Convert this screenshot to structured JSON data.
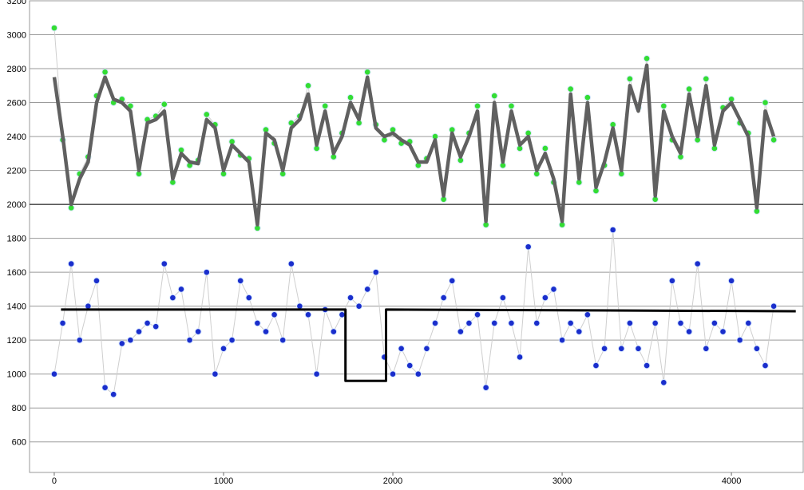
{
  "chart_data": {
    "type": "scatter",
    "x": [
      0,
      50,
      100,
      150,
      200,
      250,
      300,
      350,
      400,
      450,
      500,
      550,
      600,
      650,
      700,
      750,
      800,
      850,
      900,
      950,
      1000,
      1050,
      1100,
      1150,
      1200,
      1250,
      1300,
      1350,
      1400,
      1450,
      1500,
      1550,
      1600,
      1650,
      1700,
      1750,
      1800,
      1850,
      1900,
      1950,
      2000,
      2050,
      2100,
      2150,
      2200,
      2250,
      2300,
      2350,
      2400,
      2450,
      2500,
      2550,
      2600,
      2650,
      2700,
      2750,
      2800,
      2850,
      2900,
      2950,
      3000,
      3050,
      3100,
      3150,
      3200,
      3250,
      3300,
      3350,
      3400,
      3450,
      3500,
      3550,
      3600,
      3650,
      3700,
      3750,
      3800,
      3850,
      3900,
      3950,
      4000,
      4050,
      4100,
      4150,
      4200,
      4250
    ],
    "series": [
      {
        "mark": "dots",
        "color": "#33dd33",
        "values": [
          3040,
          2380,
          1980,
          2180,
          2280,
          2640,
          2780,
          2600,
          2620,
          2580,
          2180,
          2500,
          2520,
          2590,
          2130,
          2320,
          2230,
          2260,
          2530,
          2470,
          2180,
          2370,
          2290,
          2270,
          1860,
          2440,
          2360,
          2180,
          2480,
          2520,
          2700,
          2330,
          2580,
          2280,
          2420,
          2630,
          2480,
          2780,
          2470,
          2380,
          2440,
          2360,
          2370,
          2230,
          2270,
          2400,
          2030,
          2440,
          2260,
          2420,
          2580,
          1880,
          2640,
          2230,
          2580,
          2330,
          2420,
          2180,
          2330,
          2130,
          1880,
          2680,
          2130,
          2630,
          2080,
          2230,
          2470,
          2180,
          2740,
          2570,
          2860,
          2030,
          2580,
          2380,
          2280,
          2680,
          2380,
          2740,
          2330,
          2570,
          2620,
          2480,
          2420,
          1960,
          2600,
          2380
        ]
      },
      {
        "mark": "line",
        "color": "#606060",
        "values": [
          2750,
          2400,
          2000,
          2150,
          2250,
          2600,
          2750,
          2620,
          2600,
          2550,
          2200,
          2480,
          2500,
          2550,
          2150,
          2300,
          2250,
          2240,
          2500,
          2450,
          2200,
          2350,
          2300,
          2250,
          1880,
          2420,
          2380,
          2200,
          2450,
          2500,
          2650,
          2350,
          2550,
          2300,
          2400,
          2600,
          2500,
          2750,
          2450,
          2400,
          2420,
          2380,
          2350,
          2250,
          2250,
          2380,
          2050,
          2420,
          2280,
          2400,
          2550,
          1900,
          2600,
          2250,
          2550,
          2350,
          2400,
          2200,
          2300,
          2150,
          1900,
          2650,
          2150,
          2600,
          2100,
          2250,
          2450,
          2200,
          2700,
          2550,
          2820,
          2050,
          2550,
          2400,
          2300,
          2650,
          2400,
          2700,
          2350,
          2550,
          2600,
          2500,
          2400,
          1980,
          2550,
          2400
        ]
      },
      {
        "mark": "dots",
        "color": "#1a2ecc",
        "values": [
          1000,
          1300,
          1650,
          1200,
          1400,
          1550,
          920,
          880,
          1180,
          1200,
          1250,
          1300,
          1280,
          1650,
          1450,
          1500,
          1200,
          1250,
          1600,
          1000,
          1150,
          1200,
          1550,
          1450,
          1300,
          1250,
          1350,
          1200,
          1650,
          1400,
          1350,
          1000,
          1380,
          1250,
          1350,
          1450,
          1400,
          1500,
          1600,
          1100,
          1000,
          1150,
          1050,
          1000,
          1150,
          1300,
          1450,
          1550,
          1250,
          1300,
          1350,
          920,
          1300,
          1450,
          1300,
          1100,
          1750,
          1300,
          1450,
          1500,
          1200,
          1300,
          1250,
          1350,
          1050,
          1150,
          1850,
          1150,
          1300,
          1150,
          1050,
          1300,
          950,
          1550,
          1300,
          1250,
          1650,
          1150,
          1300,
          1250,
          1550,
          1200,
          1300,
          1150,
          1050,
          1400
        ]
      },
      {
        "mark": "line",
        "color": "#000000",
        "x": [
          40,
          1720,
          1720,
          1960,
          1960,
          4380
        ],
        "values": [
          1380,
          1380,
          960,
          960,
          1380,
          1370
        ]
      }
    ],
    "xlim": [
      -146,
      4424
    ],
    "ylim": [
      420,
      3200
    ],
    "xticks": [
      0,
      1000,
      2000,
      3000,
      4000
    ],
    "yticks": [
      600,
      800,
      1000,
      1200,
      1400,
      1600,
      1800,
      2000,
      2200,
      2400,
      2600,
      2800,
      3000,
      3200
    ],
    "baseline": 2000,
    "grid": true
  }
}
